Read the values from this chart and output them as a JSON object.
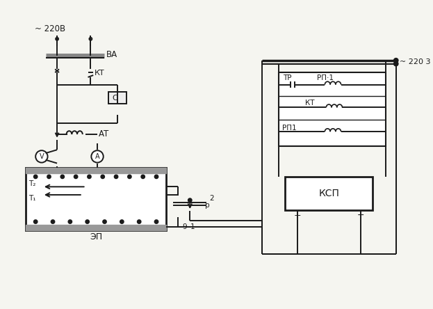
{
  "background_color": "#f5f5f0",
  "line_color": "#1a1a1a",
  "lw": 1.4,
  "labels": {
    "voltage_left": "~ 220В",
    "voltage_right": "~ 220 3",
    "BA": "ВА",
    "KT_left": "КТ",
    "C": "С",
    "AT": "АТ",
    "V_meter": "V",
    "A_meter": "А",
    "EP": "ЭП",
    "T1": "T₁",
    "T2": "T₂",
    "KSP": "КСП",
    "TR": "ТР",
    "RP1_top": "РП·1",
    "KT_right": "КТ",
    "RP1_bot": "РП1",
    "num2": "2",
    "num1": "1",
    "num9": "9",
    "p": "р"
  }
}
